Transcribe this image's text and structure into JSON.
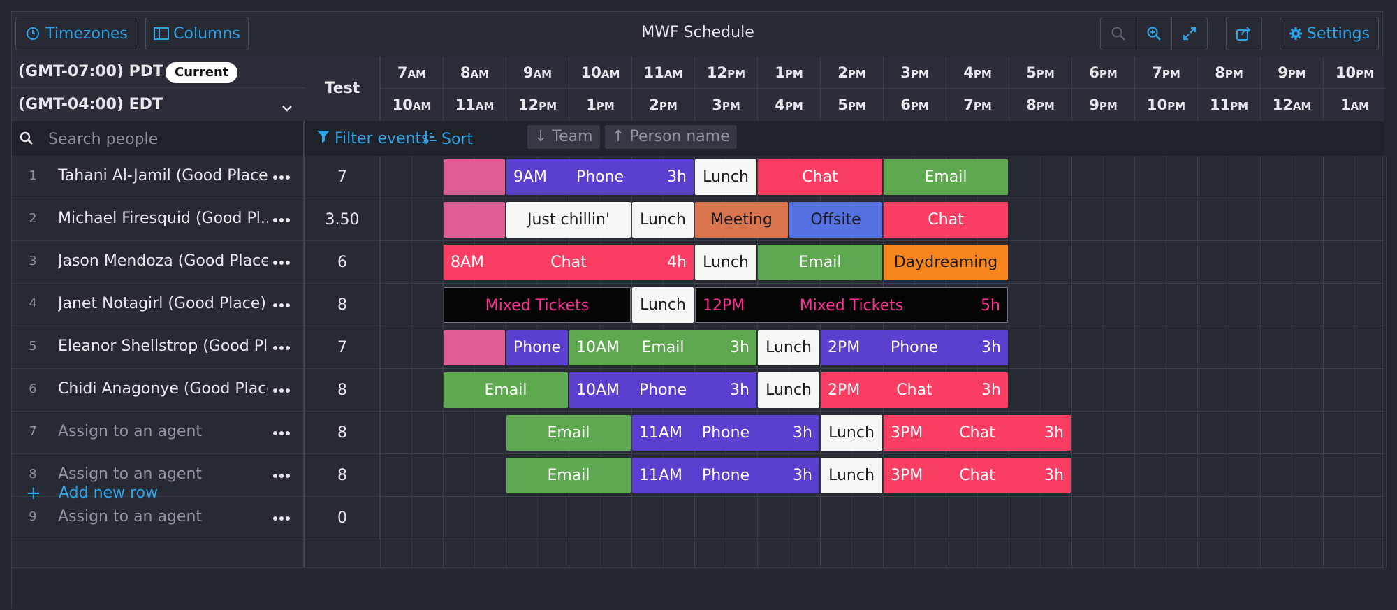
{
  "toolbar": {
    "timezones_label": "Timezones",
    "columns_label": "Columns",
    "title": "MWF Schedule",
    "settings_label": "Settings"
  },
  "timezones": {
    "primary": "(GMT-07:00) PDT",
    "current_badge": "Current",
    "secondary": "(GMT-04:00) EDT"
  },
  "search": {
    "placeholder": "Search people"
  },
  "test_column": {
    "header": "Test"
  },
  "hours_primary": [
    {
      "h": "7",
      "ap": "AM"
    },
    {
      "h": "8",
      "ap": "AM"
    },
    {
      "h": "9",
      "ap": "AM"
    },
    {
      "h": "10",
      "ap": "AM"
    },
    {
      "h": "11",
      "ap": "AM"
    },
    {
      "h": "12",
      "ap": "PM"
    },
    {
      "h": "1",
      "ap": "PM"
    },
    {
      "h": "2",
      "ap": "PM"
    },
    {
      "h": "3",
      "ap": "PM"
    },
    {
      "h": "4",
      "ap": "PM"
    },
    {
      "h": "5",
      "ap": "PM"
    },
    {
      "h": "6",
      "ap": "PM"
    },
    {
      "h": "7",
      "ap": "PM"
    },
    {
      "h": "8",
      "ap": "PM"
    },
    {
      "h": "9",
      "ap": "PM"
    },
    {
      "h": "10",
      "ap": "PM"
    }
  ],
  "hours_secondary": [
    {
      "h": "10",
      "ap": "AM"
    },
    {
      "h": "11",
      "ap": "AM"
    },
    {
      "h": "12",
      "ap": "PM"
    },
    {
      "h": "1",
      "ap": "PM"
    },
    {
      "h": "2",
      "ap": "PM"
    },
    {
      "h": "3",
      "ap": "PM"
    },
    {
      "h": "4",
      "ap": "PM"
    },
    {
      "h": "5",
      "ap": "PM"
    },
    {
      "h": "6",
      "ap": "PM"
    },
    {
      "h": "7",
      "ap": "PM"
    },
    {
      "h": "8",
      "ap": "PM"
    },
    {
      "h": "9",
      "ap": "PM"
    },
    {
      "h": "10",
      "ap": "PM"
    },
    {
      "h": "11",
      "ap": "PM"
    },
    {
      "h": "12",
      "ap": "AM"
    },
    {
      "h": "1",
      "ap": "AM"
    }
  ],
  "filters": {
    "filter_label": "Filter events",
    "sort_label": "Sort",
    "chips": [
      "↓ Team",
      "↑ Person name"
    ]
  },
  "add_row_label": "Add new row",
  "colors": {
    "pink": "#e05f93",
    "phone": "#5b3fcf",
    "chat": "#fa3d63",
    "email": "#5ea94f",
    "lunch": "#f4f7f4",
    "chillin": "#f4f7f4",
    "meeting": "#d9744e",
    "offsite": "#5570e0",
    "daydream": "#f7841d",
    "mixed": "#050505"
  },
  "rows": [
    {
      "num": "1",
      "name": "Tahani Al-Jamil (Good Place)",
      "test": "7",
      "placeholder": false,
      "events": [
        {
          "start": 8,
          "end": 9,
          "color": "pink"
        },
        {
          "start": 9,
          "end": 12,
          "color": "phone",
          "start_label": "9AM",
          "label": "Phone",
          "dur_label": "3h"
        },
        {
          "start": 12,
          "end": 13,
          "color": "lunch",
          "label": "Lunch",
          "dark": true
        },
        {
          "start": 13,
          "end": 15,
          "color": "chat",
          "label": "Chat"
        },
        {
          "start": 15,
          "end": 17,
          "color": "email",
          "label": "Email"
        }
      ]
    },
    {
      "num": "2",
      "name": "Michael Firesquid (Good Pl...",
      "test": "3.50",
      "placeholder": false,
      "events": [
        {
          "start": 8,
          "end": 9,
          "color": "pink"
        },
        {
          "start": 9,
          "end": 11,
          "color": "chillin",
          "label": "Just chillin'",
          "dark": true
        },
        {
          "start": 11,
          "end": 12,
          "color": "lunch",
          "label": "Lunch",
          "dark": true
        },
        {
          "start": 12,
          "end": 13.5,
          "color": "meeting",
          "label": "Meeting",
          "dark": true
        },
        {
          "start": 13.5,
          "end": 15,
          "color": "offsite",
          "label": "Offsite",
          "dark": true
        },
        {
          "start": 15,
          "end": 17,
          "color": "chat",
          "label": "Chat"
        }
      ]
    },
    {
      "num": "3",
      "name": "Jason Mendoza (Good Place)",
      "test": "6",
      "placeholder": false,
      "events": [
        {
          "start": 8,
          "end": 12,
          "color": "chat",
          "start_label": "8AM",
          "label": "Chat",
          "dur_label": "4h"
        },
        {
          "start": 12,
          "end": 13,
          "color": "lunch",
          "label": "Lunch",
          "dark": true
        },
        {
          "start": 13,
          "end": 15,
          "color": "email",
          "label": "Email"
        },
        {
          "start": 15,
          "end": 17,
          "color": "daydream",
          "label": "Daydreaming",
          "dark": true
        }
      ]
    },
    {
      "num": "4",
      "name": "Janet Notagirl (Good Place)",
      "test": "8",
      "placeholder": false,
      "events": [
        {
          "start": 8,
          "end": 11,
          "color": "mixed",
          "label": "Mixed Tickets",
          "pinktext": true,
          "border": true
        },
        {
          "start": 11,
          "end": 12,
          "color": "lunch",
          "label": "Lunch",
          "dark": true
        },
        {
          "start": 12,
          "end": 17,
          "color": "mixed",
          "start_label": "12PM",
          "label": "Mixed Tickets",
          "dur_label": "5h",
          "pinktext": true,
          "border": true
        }
      ]
    },
    {
      "num": "5",
      "name": "Eleanor Shellstrop (Good Pl...",
      "test": "7",
      "placeholder": false,
      "events": [
        {
          "start": 8,
          "end": 9,
          "color": "pink"
        },
        {
          "start": 9,
          "end": 10,
          "color": "phone",
          "label": "Phone"
        },
        {
          "start": 10,
          "end": 13,
          "color": "email",
          "start_label": "10AM",
          "label": "Email",
          "dur_label": "3h"
        },
        {
          "start": 13,
          "end": 14,
          "color": "lunch",
          "label": "Lunch",
          "dark": true
        },
        {
          "start": 14,
          "end": 17,
          "color": "phone",
          "start_label": "2PM",
          "label": "Phone",
          "dur_label": "3h"
        }
      ]
    },
    {
      "num": "6",
      "name": "Chidi Anagonye (Good Place)",
      "test": "8",
      "placeholder": false,
      "events": [
        {
          "start": 8,
          "end": 10,
          "color": "email",
          "label": "Email"
        },
        {
          "start": 10,
          "end": 13,
          "color": "phone",
          "start_label": "10AM",
          "label": "Phone",
          "dur_label": "3h"
        },
        {
          "start": 13,
          "end": 14,
          "color": "lunch",
          "label": "Lunch",
          "dark": true
        },
        {
          "start": 14,
          "end": 17,
          "color": "chat",
          "start_label": "2PM",
          "label": "Chat",
          "dur_label": "3h"
        }
      ]
    },
    {
      "num": "7",
      "name": "Assign to an agent",
      "test": "8",
      "placeholder": true,
      "events": [
        {
          "start": 9,
          "end": 11,
          "color": "email",
          "label": "Email"
        },
        {
          "start": 11,
          "end": 14,
          "color": "phone",
          "start_label": "11AM",
          "label": "Phone",
          "dur_label": "3h"
        },
        {
          "start": 14,
          "end": 15,
          "color": "lunch",
          "label": "Lunch",
          "dark": true
        },
        {
          "start": 15,
          "end": 18,
          "color": "chat",
          "start_label": "3PM",
          "label": "Chat",
          "dur_label": "3h"
        }
      ]
    },
    {
      "num": "8",
      "name": "Assign to an agent",
      "test": "8",
      "placeholder": true,
      "events": [
        {
          "start": 9,
          "end": 11,
          "color": "email",
          "label": "Email"
        },
        {
          "start": 11,
          "end": 14,
          "color": "phone",
          "start_label": "11AM",
          "label": "Phone",
          "dur_label": "3h"
        },
        {
          "start": 14,
          "end": 15,
          "color": "lunch",
          "label": "Lunch",
          "dark": true
        },
        {
          "start": 15,
          "end": 18,
          "color": "chat",
          "start_label": "3PM",
          "label": "Chat",
          "dur_label": "3h"
        }
      ]
    },
    {
      "num": "9",
      "name": "Assign to an agent",
      "test": "0",
      "placeholder": true,
      "events": []
    }
  ]
}
